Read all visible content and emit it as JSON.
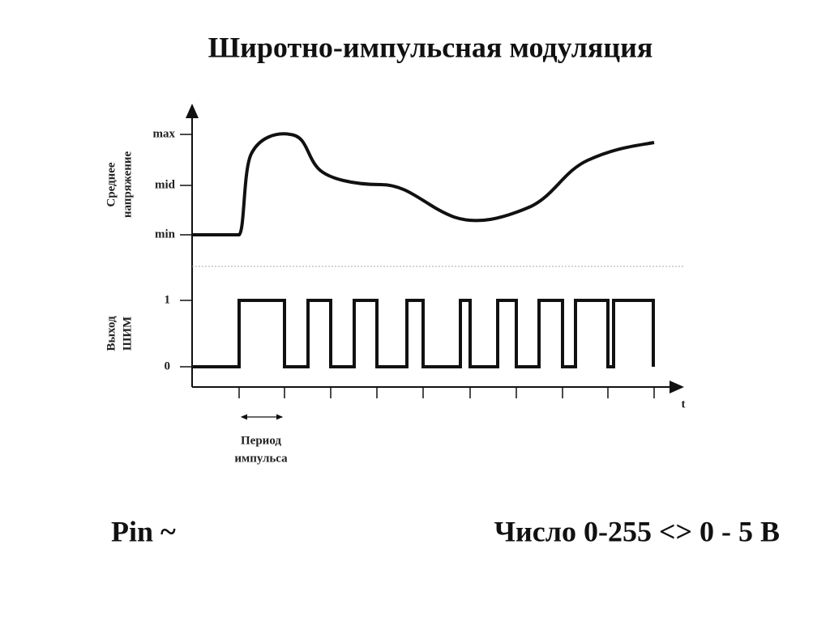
{
  "title": "Широтно-импульсная модуляция",
  "top_panel": {
    "axis_label": [
      "Среднее",
      "напряжение"
    ],
    "levels": [
      "max",
      "mid",
      "min"
    ]
  },
  "bottom_panel": {
    "axis_label": [
      "Выход",
      "ШИМ"
    ],
    "levels": [
      "1",
      "0"
    ]
  },
  "x_axis_label": "t",
  "period_label": [
    "Период",
    "импульса"
  ],
  "footer": {
    "left": "Pin ~",
    "right": "Число 0-255 <> 0 - 5 В"
  }
}
